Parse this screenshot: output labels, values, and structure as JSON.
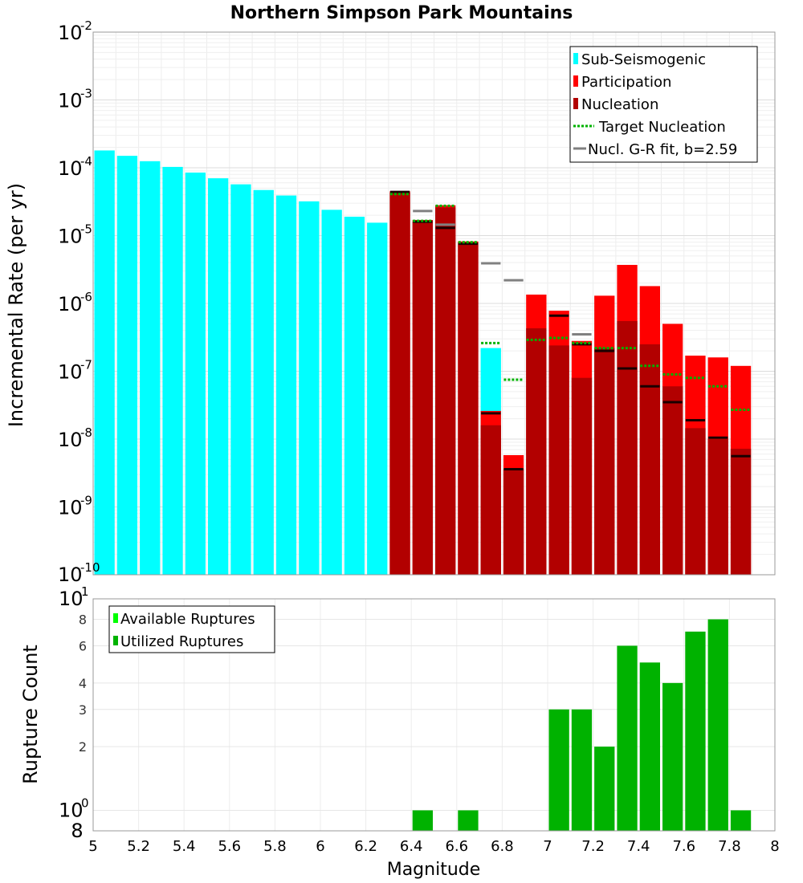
{
  "chart_data": [
    {
      "type": "bar",
      "panel": "top",
      "title": "Northern Simpson Park Mountains",
      "ylabel": "Incremental Rate (per yr)",
      "xlabel": "",
      "yscale": "log",
      "ylim": [
        1e-10,
        0.01
      ],
      "xlim": [
        5,
        8
      ],
      "bin_width": 0.1,
      "y_tick_labels": [
        {
          "exp": -10,
          "base": "10",
          "sup": "-10"
        },
        {
          "exp": -9,
          "base": "10",
          "sup": "-9"
        },
        {
          "exp": -8,
          "base": "10",
          "sup": "-8"
        },
        {
          "exp": -7,
          "base": "10",
          "sup": "-7"
        },
        {
          "exp": -6,
          "base": "10",
          "sup": "-6"
        },
        {
          "exp": -5,
          "base": "10",
          "sup": "-5"
        },
        {
          "exp": -4,
          "base": "10",
          "sup": "-4"
        },
        {
          "exp": -3,
          "base": "10",
          "sup": "-3"
        },
        {
          "exp": -2,
          "base": "10",
          "sup": "-2"
        }
      ],
      "legend": {
        "position": "top-right",
        "entries": [
          {
            "label": "Sub-Seismogenic",
            "kind": "bar",
            "color": "#00ffff"
          },
          {
            "label": "Participation",
            "kind": "bar",
            "color": "#ff0000"
          },
          {
            "label": "Nucleation",
            "kind": "bar",
            "color": "#b20000"
          },
          {
            "label": "Target Nucleation",
            "kind": "dotted",
            "color": "#00b200"
          },
          {
            "label": "Nucl. G-R fit, b=2.59",
            "kind": "line",
            "color": "#808080"
          }
        ]
      },
      "series": [
        {
          "name": "Sub-Seismogenic",
          "color": "#00ffff",
          "x": [
            5.05,
            5.15,
            5.25,
            5.35,
            5.45,
            5.55,
            5.65,
            5.75,
            5.85,
            5.95,
            6.05,
            6.15,
            6.25,
            6.75
          ],
          "values": [
            0.00018,
            0.00015,
            0.000125,
            0.000103,
            8.5e-05,
            7e-05,
            5.7e-05,
            4.7e-05,
            3.9e-05,
            3.2e-05,
            2.4e-05,
            1.9e-05,
            1.55e-05,
            2.2e-07
          ]
        },
        {
          "name": "Participation",
          "color": "#ff0000",
          "x": [
            6.35,
            6.45,
            6.55,
            6.65,
            6.75,
            6.85,
            6.95,
            7.05,
            7.15,
            7.25,
            7.35,
            7.45,
            7.55,
            7.65,
            7.75,
            7.85
          ],
          "values": [
            4.5e-05,
            1.7e-05,
            2.8e-05,
            8.2e-06,
            2.6e-08,
            5.8e-09,
            1.35e-06,
            7.8e-07,
            2.8e-07,
            1.3e-06,
            3.7e-06,
            1.8e-06,
            5e-07,
            1.7e-07,
            1.6e-07,
            1.2e-07
          ]
        },
        {
          "name": "Nucleation",
          "color": "#b20000",
          "x": [
            6.35,
            6.45,
            6.55,
            6.65,
            6.75,
            6.85,
            6.95,
            7.05,
            7.15,
            7.25,
            7.35,
            7.45,
            7.55,
            7.65,
            7.75,
            7.85
          ],
          "values": [
            4.3e-05,
            1.6e-05,
            2.6e-05,
            7.8e-06,
            1.6e-08,
            3.6e-09,
            4.3e-07,
            2.4e-07,
            8e-08,
            2.2e-07,
            5.5e-07,
            2.5e-07,
            6e-08,
            1.45e-08,
            1e-08,
            7.2e-09
          ]
        },
        {
          "name": "Target Nucleation",
          "color": "#00b200",
          "style": "dotted",
          "x": [
            6.35,
            6.45,
            6.55,
            6.65,
            6.75,
            6.85,
            6.95,
            7.05,
            7.15,
            7.25,
            7.35,
            7.45,
            7.55,
            7.65,
            7.75,
            7.85
          ],
          "values": [
            4.1e-05,
            1.65e-05,
            2.75e-05,
            8e-06,
            2.6e-07,
            7.5e-08,
            2.9e-07,
            3.1e-07,
            2.6e-07,
            2.2e-07,
            2.2e-07,
            1.2e-07,
            9e-08,
            8e-08,
            6e-08,
            2.7e-08
          ]
        },
        {
          "name": "Nucl. G-R fit, b=2.59",
          "color": "#808080",
          "style": "solid",
          "x": [
            6.45,
            6.55,
            6.75,
            6.85,
            7.15
          ],
          "values": [
            2.3e-05,
            1.45e-05,
            3.9e-06,
            2.2e-06,
            3.5e-07
          ]
        },
        {
          "name": "Nucleation (markers)",
          "color": "#1a0000",
          "style": "short-dash",
          "x": [
            6.35,
            6.45,
            6.55,
            6.65,
            6.75,
            6.85,
            7.05,
            7.15,
            7.25,
            7.35,
            7.45,
            7.55,
            7.65,
            7.75,
            7.85
          ],
          "values": [
            4.4e-05,
            1.6e-05,
            1.3e-05,
            7.6e-06,
            2.4e-08,
            3.6e-09,
            6.6e-07,
            2.5e-07,
            2e-07,
            1.1e-07,
            6e-08,
            3.5e-08,
            1.9e-08,
            1.05e-08,
            5.6e-09
          ]
        }
      ]
    },
    {
      "type": "bar",
      "panel": "bottom",
      "title": "",
      "ylabel": "Rupture Count",
      "xlabel": "Magnitude",
      "yscale": "log",
      "ylim": [
        0.8,
        10
      ],
      "xlim": [
        5,
        8
      ],
      "x_tick_labels": [
        "5",
        "5.2",
        "5.4",
        "5.6",
        "5.8",
        "6",
        "6.2",
        "6.4",
        "6.6",
        "6.8",
        "7",
        "7.2",
        "7.4",
        "7.6",
        "7.8",
        "8"
      ],
      "y_small_tick_labels": [
        "8",
        "6",
        "4",
        "3",
        "2"
      ],
      "y_decade_labels": [
        {
          "base": "10",
          "sup": "0"
        },
        {
          "base": "10",
          "sup": "1"
        }
      ],
      "y_bottom_label": "8",
      "legend": {
        "position": "top-left",
        "entries": [
          {
            "label": "Available Ruptures",
            "color": "#00ff00"
          },
          {
            "label": "Utilized Ruptures",
            "color": "#00b200"
          }
        ]
      },
      "series": [
        {
          "name": "Utilized Ruptures",
          "color": "#00b200",
          "x": [
            6.45,
            6.65,
            7.05,
            7.15,
            7.25,
            7.35,
            7.45,
            7.55,
            7.65,
            7.75,
            7.85
          ],
          "values": [
            1,
            1,
            3,
            3,
            2,
            6,
            5,
            4,
            7,
            8,
            1
          ]
        }
      ]
    }
  ]
}
